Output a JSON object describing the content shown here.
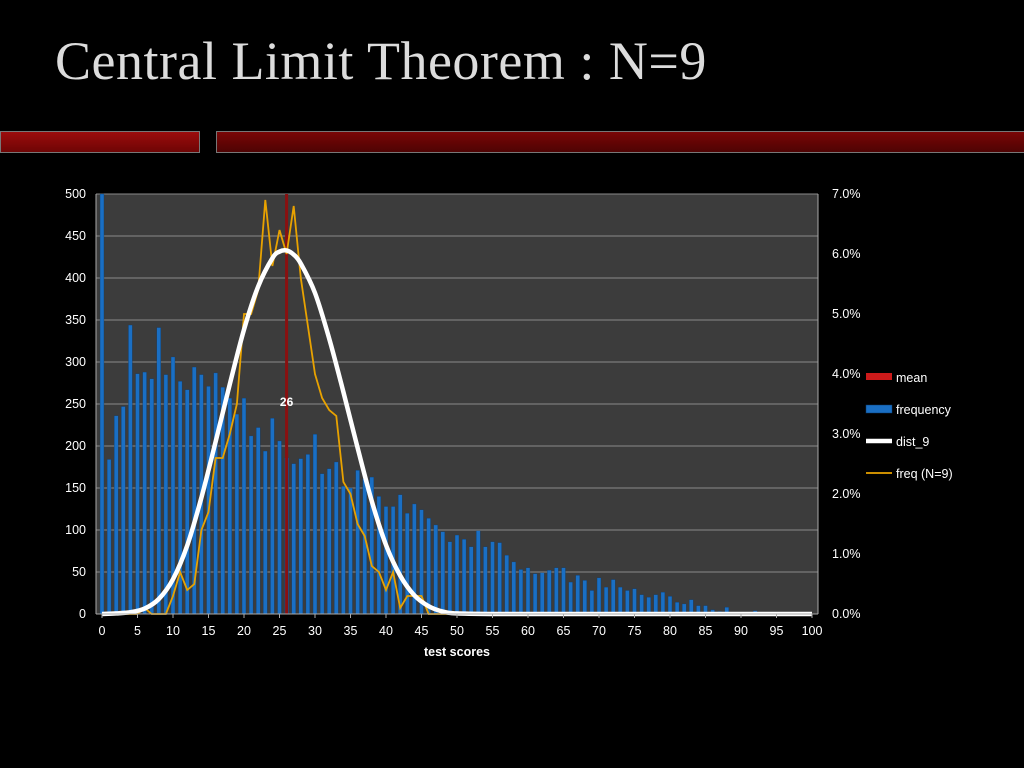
{
  "slide": {
    "title": "Central Limit Theorem : N=9"
  },
  "chart_data": {
    "type": "bar",
    "xlabel": "test scores",
    "ylabel": "",
    "xlim": [
      0,
      100
    ],
    "ylim": [
      0,
      500
    ],
    "y2lim": [
      0,
      0.07
    ],
    "grid": true,
    "legend_position": "right",
    "x_ticks": [
      "0",
      "5",
      "10",
      "15",
      "20",
      "25",
      "30",
      "35",
      "40",
      "45",
      "50",
      "55",
      "60",
      "65",
      "70",
      "75",
      "80",
      "85",
      "90",
      "95",
      "100"
    ],
    "y_ticks": [
      "0",
      "50",
      "100",
      "150",
      "200",
      "250",
      "300",
      "350",
      "400",
      "450",
      "500"
    ],
    "y2_ticks": [
      "0.0%",
      "1.0%",
      "2.0%",
      "3.0%",
      "4.0%",
      "5.0%",
      "6.0%",
      "7.0%"
    ],
    "mean": {
      "value": 26,
      "label": "26"
    },
    "series": [
      {
        "name": "mean",
        "type": "vline",
        "axis": "left",
        "color": "#cc1a1a"
      },
      {
        "name": "frequency",
        "type": "bar",
        "axis": "left",
        "color": "#1a6fc4",
        "x": [
          0,
          1,
          2,
          3,
          4,
          5,
          6,
          7,
          8,
          9,
          10,
          11,
          12,
          13,
          14,
          15,
          16,
          17,
          18,
          19,
          20,
          21,
          22,
          23,
          24,
          25,
          26,
          27,
          28,
          29,
          30,
          31,
          32,
          33,
          34,
          35,
          36,
          37,
          38,
          39,
          40,
          41,
          42,
          43,
          44,
          45,
          46,
          47,
          48,
          49,
          50,
          51,
          52,
          53,
          54,
          55,
          56,
          57,
          58,
          59,
          60,
          61,
          62,
          63,
          64,
          65,
          66,
          67,
          68,
          69,
          70,
          71,
          72,
          73,
          74,
          75,
          76,
          77,
          78,
          79,
          80,
          81,
          82,
          83,
          84,
          85,
          86,
          87,
          88,
          89,
          90,
          91,
          92,
          93,
          94,
          95,
          96,
          97,
          98,
          99,
          100
        ],
        "values": [
          500,
          184,
          236,
          247,
          344,
          286,
          288,
          280,
          341,
          285,
          306,
          277,
          267,
          294,
          285,
          271,
          287,
          270,
          257,
          238,
          257,
          212,
          222,
          194,
          233,
          206,
          186,
          179,
          185,
          190,
          214,
          167,
          173,
          181,
          152,
          150,
          171,
          161,
          163,
          140,
          128,
          128,
          142,
          120,
          131,
          124,
          114,
          106,
          98,
          86,
          94,
          89,
          80,
          99,
          80,
          86,
          85,
          70,
          62,
          53,
          55,
          48,
          49,
          52,
          55,
          55,
          38,
          46,
          40,
          28,
          43,
          32,
          41,
          32,
          28,
          30,
          23,
          20,
          23,
          26,
          21,
          14,
          12,
          17,
          10,
          10,
          5,
          3,
          8,
          2,
          1,
          1,
          4,
          1,
          1,
          1,
          0,
          1,
          0,
          0,
          0
        ]
      },
      {
        "name": "dist_9",
        "type": "line",
        "axis": "right",
        "color": "#ffffff",
        "x": [
          0,
          2,
          4,
          6,
          8,
          10,
          12,
          14,
          16,
          18,
          20,
          22,
          24,
          25,
          26,
          27,
          28,
          30,
          32,
          34,
          36,
          38,
          40,
          42,
          44,
          46,
          48,
          50,
          55,
          60,
          70,
          80,
          90,
          100
        ],
        "values": [
          0.0,
          0.0001,
          0.0003,
          0.0009,
          0.0025,
          0.0058,
          0.0114,
          0.0194,
          0.0287,
          0.0383,
          0.0474,
          0.0546,
          0.0593,
          0.0604,
          0.0606,
          0.0599,
          0.0584,
          0.0535,
          0.0459,
          0.037,
          0.0277,
          0.0188,
          0.0115,
          0.0064,
          0.0031,
          0.0013,
          0.0004,
          0.0001,
          0.0,
          0.0,
          0.0,
          0.0,
          0.0,
          0.0
        ]
      },
      {
        "name": "freq (N=9)",
        "type": "line",
        "axis": "right",
        "color": "#e8a200",
        "x": [
          0,
          5,
          6,
          7,
          8,
          9,
          10,
          11,
          12,
          13,
          14,
          15,
          16,
          17,
          18,
          19,
          20,
          21,
          22,
          23,
          24,
          25,
          26,
          27,
          28,
          29,
          30,
          31,
          32,
          33,
          34,
          35,
          36,
          37,
          38,
          39,
          40,
          41,
          42,
          43,
          44,
          45,
          46,
          47,
          50,
          60,
          70,
          80,
          90,
          100
        ],
        "values": [
          0.0,
          0.0,
          0.001,
          0.0,
          0.0,
          0.0,
          0.003,
          0.007,
          0.004,
          0.005,
          0.014,
          0.017,
          0.026,
          0.026,
          0.03,
          0.035,
          0.05,
          0.05,
          0.054,
          0.069,
          0.058,
          0.064,
          0.06,
          0.068,
          0.056,
          0.048,
          0.04,
          0.036,
          0.034,
          0.033,
          0.022,
          0.02,
          0.015,
          0.013,
          0.008,
          0.007,
          0.004,
          0.007,
          0.001,
          0.003,
          0.003,
          0.003,
          0.0,
          0.0,
          0.0,
          0.0,
          0.0,
          0.0,
          0.0,
          0.0
        ]
      }
    ]
  }
}
